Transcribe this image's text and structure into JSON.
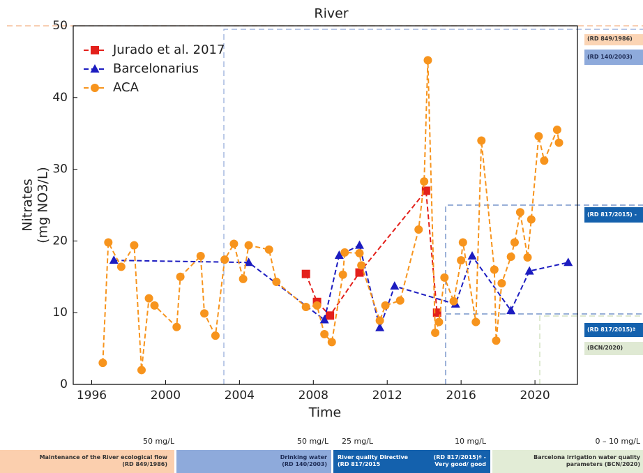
{
  "chart_data": {
    "type": "line",
    "title": "River",
    "xlabel": "Time",
    "ylabel": [
      "Nitrates",
      "(mg NO3/L)"
    ],
    "xlim": [
      1995,
      2022.3
    ],
    "xticks": [
      1996,
      2000,
      2004,
      2008,
      2012,
      2016,
      2020
    ],
    "ylim": [
      0,
      50
    ],
    "yticks": [
      0,
      10,
      20,
      30,
      40,
      50
    ],
    "legend": "upper left",
    "series": [
      {
        "name": "Jurado et al. 2017",
        "color": "#e3201b",
        "marker": "square",
        "x": [
          2007.6,
          2008.2,
          2008.9,
          2010.5,
          2014.1,
          2014.7
        ],
        "values": [
          15.4,
          11.5,
          9.6,
          15.6,
          27.0,
          10.0
        ]
      },
      {
        "name": "Barcelonarius",
        "color": "#1c1cc0",
        "marker": "triangle",
        "x": [
          1997.2,
          2004.5,
          2008.6,
          2009.4,
          2010.5,
          2011.6,
          2012.4,
          2015.7,
          2016.6,
          2018.7,
          2019.7,
          2021.8
        ],
        "values": [
          17.3,
          17.0,
          9.0,
          18.0,
          19.4,
          7.9,
          13.7,
          11.2,
          17.9,
          10.3,
          15.8,
          17.0
        ]
      },
      {
        "name": "ACA",
        "color": "#f7941d",
        "marker": "circle",
        "x": [
          1996.6,
          1996.9,
          1997.6,
          1998.3,
          1998.7,
          1999.1,
          1999.4,
          2000.6,
          2000.8,
          2001.9,
          2002.1,
          2002.7,
          2003.2,
          2003.7,
          2004.2,
          2004.5,
          2005.6,
          2006.0,
          2007.6,
          2008.2,
          2008.6,
          2009.0,
          2009.6,
          2009.7,
          2010.5,
          2010.6,
          2011.6,
          2011.9,
          2012.7,
          2013.7,
          2014.0,
          2014.2,
          2014.6,
          2014.8,
          2015.1,
          2015.6,
          2016.0,
          2016.1,
          2016.8,
          2017.1,
          2017.8,
          2017.9,
          2018.2,
          2018.7,
          2018.9,
          2019.2,
          2019.6,
          2019.8,
          2020.2,
          2020.5,
          2021.2,
          2021.3
        ],
        "values": [
          3.0,
          19.8,
          16.4,
          19.4,
          2.0,
          12.0,
          11.0,
          8.0,
          15.0,
          17.9,
          9.9,
          6.8,
          17.4,
          19.6,
          14.7,
          19.4,
          18.8,
          14.3,
          10.8,
          11.0,
          7.0,
          5.9,
          15.3,
          18.4,
          18.3,
          16.6,
          8.9,
          11.0,
          11.7,
          21.6,
          28.3,
          45.2,
          7.2,
          8.7,
          14.9,
          11.6,
          17.3,
          19.8,
          8.7,
          34.0,
          16.0,
          6.1,
          14.1,
          17.8,
          19.8,
          24.0,
          17.7,
          23.0,
          34.6,
          31.2,
          35.5,
          33.7
        ]
      }
    ]
  },
  "right_labels": [
    "(RD 849/1986)",
    "(RD 140/2003)",
    "(RD 817/2015) -",
    "(RD 817/2015)ª",
    "(BCN/2020)"
  ],
  "limits": [
    "50 mg/L",
    "50 mg/L",
    "25 mg/L",
    "10 mg/L",
    "0 – 10 mg/L"
  ],
  "legislation": [
    "Maintenance of the River ecological flow (RD 849/1986)",
    "Drinking water (RD 140/2003)",
    "River quality Directive (RD 817/2015",
    "(RD 817/2015)ª - Very good/ good",
    "Barcelona irrigation water quality parameters (BCN/2020)"
  ]
}
